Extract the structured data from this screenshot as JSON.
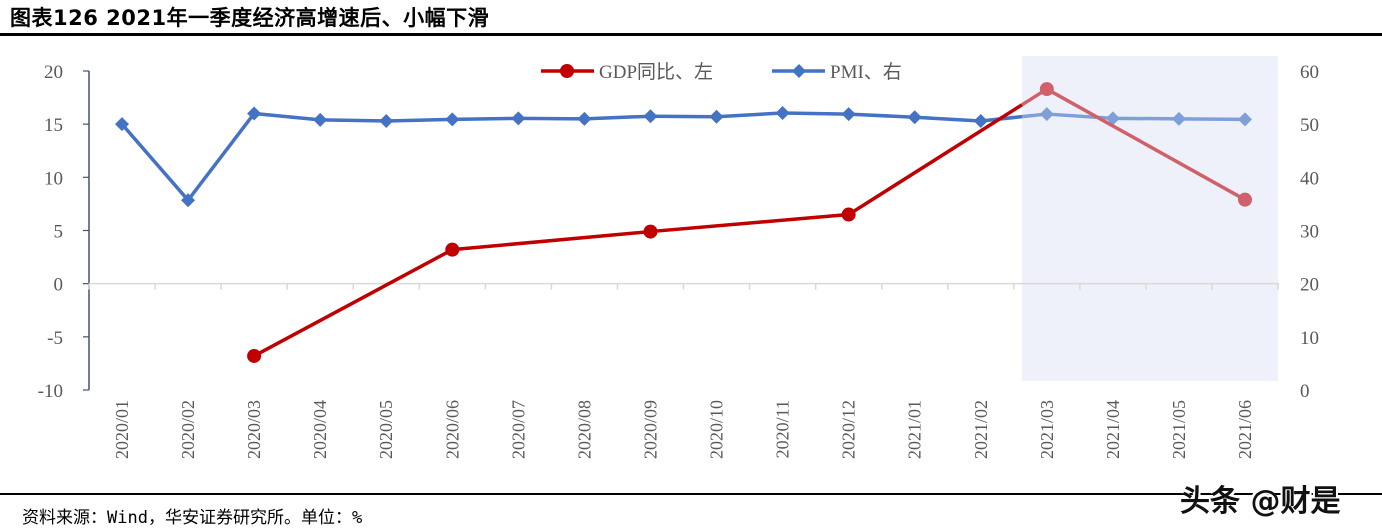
{
  "header": {
    "title": "图表126 2021年一季度经济高增速后、小幅下滑"
  },
  "footer": {
    "source": "资料来源：Wind，华安证券研究所。单位：%",
    "watermark": "头条 @财是"
  },
  "colors": {
    "gdp": "#C00000",
    "gdp_forecast": "#D0606A",
    "pmi": "#4472C4",
    "pmi_forecast": "#7F9FD8",
    "shade": "#EEF1F9",
    "axis": "#44546A",
    "gridline": "#D9D9D9"
  },
  "chart_data": {
    "type": "line",
    "title": "2021年一季度经济高增速后、小幅下滑",
    "xlabel": "",
    "ylabel_left": "",
    "ylabel_right": "",
    "categories": [
      "2020/01",
      "2020/02",
      "2020/03",
      "2020/04",
      "2020/05",
      "2020/06",
      "2020/07",
      "2020/08",
      "2020/09",
      "2020/10",
      "2020/11",
      "2020/12",
      "2021/01",
      "2021/02",
      "2021/03",
      "2021/04",
      "2021/05",
      "2021/06"
    ],
    "series": [
      {
        "name": "GDP同比、左",
        "axis": "left",
        "marker": "circle",
        "values": [
          null,
          null,
          -6.8,
          null,
          null,
          3.2,
          null,
          null,
          4.9,
          null,
          null,
          6.5,
          null,
          null,
          18.3,
          null,
          null,
          7.9
        ]
      },
      {
        "name": "PMI、右",
        "axis": "right",
        "marker": "diamond",
        "values": [
          50.0,
          35.7,
          52.0,
          50.8,
          50.6,
          50.9,
          51.1,
          51.0,
          51.5,
          51.4,
          52.1,
          51.9,
          51.3,
          50.6,
          51.9,
          51.1,
          51.0,
          50.9
        ]
      }
    ],
    "ylim_left": [
      -10,
      20
    ],
    "yticks_left": [
      20,
      15,
      10,
      5,
      0,
      -5,
      -10
    ],
    "ylim_right": [
      0,
      60
    ],
    "yticks_right": [
      60,
      50,
      40,
      30,
      20,
      10,
      0
    ],
    "legend_position": "top-center",
    "grid": false,
    "shaded_region": {
      "from": "2021/03",
      "to": "2021/06",
      "note": "forecast period highlighted"
    }
  }
}
